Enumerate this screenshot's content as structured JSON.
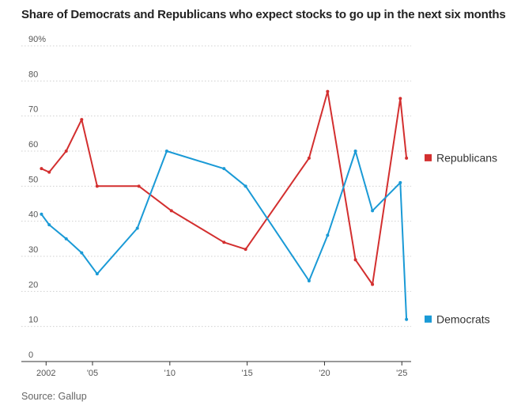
{
  "title": "Share of Democrats and Republicans who expect stocks to go up in the next six months",
  "source": "Source: Gallup",
  "chart_data": {
    "type": "line",
    "title": "Share of Democrats and Republicans who expect stocks to go up in the next six months",
    "xlabel": "",
    "ylabel": "",
    "xlim": [
      2000.4,
      2025.6
    ],
    "ylim": [
      0,
      90
    ],
    "y_ticks": [
      {
        "value": 0,
        "label": "0"
      },
      {
        "value": 10,
        "label": "10"
      },
      {
        "value": 20,
        "label": "20"
      },
      {
        "value": 30,
        "label": "30"
      },
      {
        "value": 40,
        "label": "40"
      },
      {
        "value": 50,
        "label": "50"
      },
      {
        "value": 60,
        "label": "60"
      },
      {
        "value": 70,
        "label": "70"
      },
      {
        "value": 80,
        "label": "80"
      },
      {
        "value": 90,
        "label": "90%"
      }
    ],
    "x_ticks": [
      {
        "value": 2002,
        "label": "2002"
      },
      {
        "value": 2005,
        "label": "'05"
      },
      {
        "value": 2010,
        "label": "'10"
      },
      {
        "value": 2015,
        "label": "'15"
      },
      {
        "value": 2020,
        "label": "'20"
      },
      {
        "value": 2025,
        "label": "'25"
      }
    ],
    "grid": true,
    "legend": "right, labels at line ends",
    "series": [
      {
        "name": "Republicans",
        "color": "#d32f2f",
        "x": [
          2001.7,
          2002.2,
          2003.3,
          2004.3,
          2005.3,
          2008.0,
          2010.1,
          2013.5,
          2014.9,
          2019.0,
          2020.2,
          2022.0,
          2023.1,
          2024.9,
          2025.3
        ],
        "values": [
          55,
          54,
          60,
          69,
          50,
          50,
          43,
          34,
          32,
          58,
          77,
          29,
          22,
          75,
          58
        ]
      },
      {
        "name": "Democrats",
        "color": "#1a9ad6",
        "x": [
          2001.7,
          2002.2,
          2003.3,
          2004.3,
          2005.3,
          2007.9,
          2009.8,
          2013.5,
          2014.9,
          2019.0,
          2020.2,
          2022.0,
          2023.1,
          2024.9,
          2025.3
        ],
        "values": [
          42,
          39,
          35,
          31,
          25,
          38,
          60,
          55,
          50,
          23,
          36,
          60,
          43,
          51,
          12
        ]
      }
    ]
  }
}
